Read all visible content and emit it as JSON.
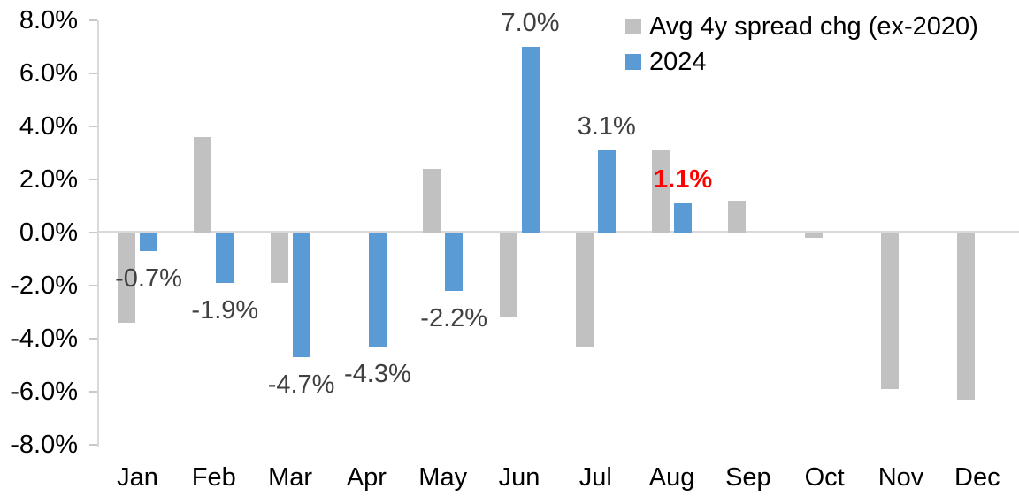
{
  "chart_data": {
    "type": "bar",
    "title": "",
    "xlabel": "",
    "ylabel": "",
    "categories": [
      "Jan",
      "Feb",
      "Mar",
      "Apr",
      "May",
      "Jun",
      "Jul",
      "Aug",
      "Sep",
      "Oct",
      "Nov",
      "Dec"
    ],
    "series": [
      {
        "name": "Avg 4y spread chg (ex-2020)",
        "color": "#c1c1c1",
        "values": [
          -3.4,
          3.6,
          -1.9,
          0.0,
          2.4,
          -3.2,
          -4.3,
          3.1,
          1.2,
          -0.2,
          -5.9,
          -6.3
        ]
      },
      {
        "name": "2024",
        "color": "#5b9bd5",
        "values": [
          -0.7,
          -1.9,
          -4.7,
          -4.3,
          -2.2,
          7.0,
          3.1,
          1.1,
          null,
          null,
          null,
          null
        ]
      }
    ],
    "data_labels": [
      {
        "category": "Jan",
        "text": "-0.7%",
        "highlight": false
      },
      {
        "category": "Feb",
        "text": "-1.9%",
        "highlight": false
      },
      {
        "category": "Mar",
        "text": "-4.7%",
        "highlight": false
      },
      {
        "category": "Apr",
        "text": "-4.3%",
        "highlight": false
      },
      {
        "category": "May",
        "text": "-2.2%",
        "highlight": false
      },
      {
        "category": "Jun",
        "text": "7.0%",
        "highlight": false
      },
      {
        "category": "Jul",
        "text": "3.1%",
        "highlight": false
      },
      {
        "category": "Aug",
        "text": "1.1%",
        "highlight": true
      }
    ],
    "y_axis": {
      "min": -8,
      "max": 8,
      "tick_step": 2,
      "tick_labels": [
        "8.0%",
        "6.0%",
        "4.0%",
        "2.0%",
        "0.0%",
        "-2.0%",
        "-4.0%",
        "-6.0%",
        "-8.0%"
      ]
    },
    "legend": {
      "position": "top-right",
      "entries": [
        "Avg 4y spread chg (ex-2020)",
        "2024"
      ]
    },
    "grid": "off",
    "colors": {
      "gray_series": "#c1c1c1",
      "blue_series": "#5b9bd5",
      "label_default": "#404040",
      "label_highlight": "#FF0000",
      "axis_line": "#d9d9d9",
      "axis_text": "#000000"
    }
  }
}
